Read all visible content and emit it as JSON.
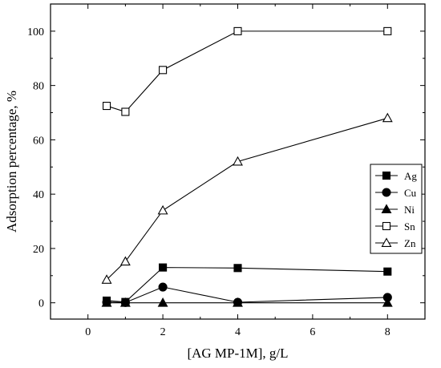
{
  "chart_data": {
    "type": "line",
    "title": "",
    "xlabel": "[AG MP-1M], g/L",
    "ylabel": "Adsorption percentage, %",
    "xlim": [
      -1,
      9
    ],
    "ylim": [
      -6,
      110
    ],
    "xticks": [
      0,
      2,
      4,
      6,
      8
    ],
    "yticks": [
      0,
      20,
      40,
      60,
      80,
      100
    ],
    "grid": false,
    "legend_position": "right",
    "series": [
      {
        "name": "Ag",
        "marker": "square-filled",
        "x": [
          0.5,
          1,
          2,
          4,
          8
        ],
        "y": [
          0.8,
          0.3,
          13,
          12.8,
          11.5
        ]
      },
      {
        "name": "Cu",
        "marker": "circle-filled",
        "x": [
          0.5,
          1,
          2,
          4,
          8
        ],
        "y": [
          0.2,
          0.1,
          5.8,
          0.2,
          2.0
        ]
      },
      {
        "name": "Ni",
        "marker": "triangle-filled",
        "x": [
          0.5,
          1,
          2,
          4,
          8
        ],
        "y": [
          0,
          0,
          0,
          0,
          0
        ]
      },
      {
        "name": "Sn",
        "marker": "square-open",
        "x": [
          0.5,
          1,
          2,
          4,
          8
        ],
        "y": [
          72.5,
          70.3,
          85.7,
          100,
          100
        ]
      },
      {
        "name": "Zn",
        "marker": "triangle-open",
        "x": [
          0.5,
          1,
          2,
          4,
          8
        ],
        "y": [
          8.5,
          15.2,
          34,
          52,
          68
        ]
      }
    ]
  }
}
